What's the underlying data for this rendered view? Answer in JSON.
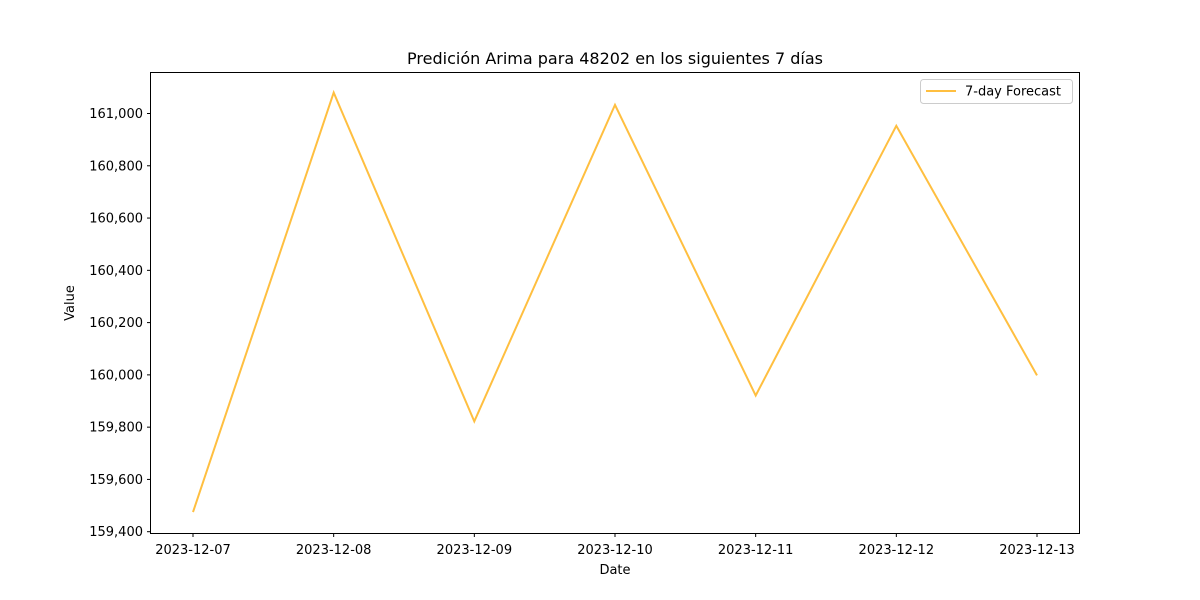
{
  "chart_data": {
    "type": "line",
    "title": "Predición Arima para 48202 en los siguientes 7 días",
    "xlabel": "Date",
    "ylabel": "Value",
    "x": [
      "2023-12-07",
      "2023-12-08",
      "2023-12-09",
      "2023-12-10",
      "2023-12-11",
      "2023-12-12",
      "2023-12-13"
    ],
    "series": [
      {
        "name": "7-day Forecast",
        "color": "#ffbf40",
        "values": [
          159475,
          161080,
          159822,
          161033,
          159921,
          160953,
          159998
        ]
      }
    ],
    "yticks": [
      159400,
      159600,
      159800,
      160000,
      160200,
      160400,
      160600,
      160800,
      161000
    ],
    "ytick_labels": [
      "159,400",
      "159,600",
      "159,800",
      "160,000",
      "160,200",
      "160,400",
      "160,600",
      "160,800",
      "161,000"
    ],
    "ylim": [
      159395,
      161155
    ],
    "grid": false,
    "legend_position": "top-right"
  }
}
